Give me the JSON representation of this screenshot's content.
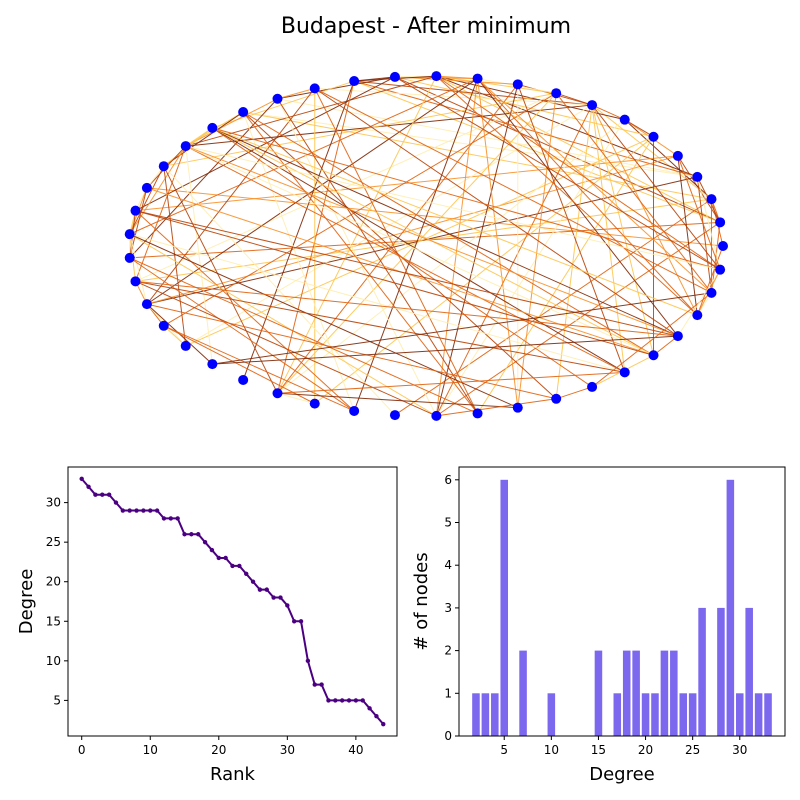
{
  "figure": {
    "title": "Budapest - After minimum"
  },
  "chart_data": [
    {
      "type": "network",
      "layout": "circular",
      "title": "Budapest - After minimum",
      "node_count": 45,
      "node_color": "#0000ff",
      "edge_colormap": [
        "#ffedb0",
        "#fec54f",
        "#f8912a",
        "#e0620e",
        "#b84307",
        "#7f2704"
      ]
    },
    {
      "type": "line",
      "xlabel": "Rank",
      "ylabel": "Degree",
      "xlim": [
        -2,
        46
      ],
      "ylim": [
        0.5,
        34.5
      ],
      "xticks": [
        0,
        10,
        20,
        30,
        40
      ],
      "yticks": [
        5,
        10,
        15,
        20,
        25,
        30
      ],
      "color": "#4b0082",
      "x": [
        0,
        1,
        2,
        3,
        4,
        5,
        6,
        7,
        8,
        9,
        10,
        11,
        12,
        13,
        14,
        15,
        16,
        17,
        18,
        19,
        20,
        21,
        22,
        23,
        24,
        25,
        26,
        27,
        28,
        29,
        30,
        31,
        32,
        33,
        34,
        35,
        36,
        37,
        38,
        39,
        40,
        41,
        42,
        43,
        44
      ],
      "y": [
        33,
        32,
        31,
        31,
        31,
        30,
        29,
        29,
        29,
        29,
        29,
        29,
        28,
        28,
        28,
        26,
        26,
        26,
        25,
        24,
        23,
        23,
        22,
        22,
        21,
        20,
        19,
        19,
        18,
        18,
        17,
        15,
        15,
        10,
        7,
        7,
        5,
        5,
        5,
        5,
        5,
        5,
        4,
        3,
        2
      ]
    },
    {
      "type": "bar",
      "xlabel": "Degree",
      "ylabel": "# of nodes",
      "xlim": [
        0.2,
        34.8
      ],
      "ylim": [
        0,
        6.3
      ],
      "xticks": [
        5,
        10,
        15,
        20,
        25,
        30
      ],
      "yticks": [
        0,
        1,
        2,
        3,
        4,
        5,
        6
      ],
      "color": "#7b68ee",
      "x": [
        2,
        3,
        4,
        5,
        7,
        10,
        15,
        17,
        18,
        19,
        20,
        21,
        22,
        23,
        24,
        25,
        26,
        28,
        29,
        30,
        31,
        32,
        33
      ],
      "values": [
        1,
        1,
        1,
        6,
        2,
        1,
        2,
        1,
        2,
        2,
        1,
        1,
        2,
        2,
        1,
        1,
        3,
        3,
        6,
        1,
        3,
        1,
        1
      ]
    }
  ]
}
